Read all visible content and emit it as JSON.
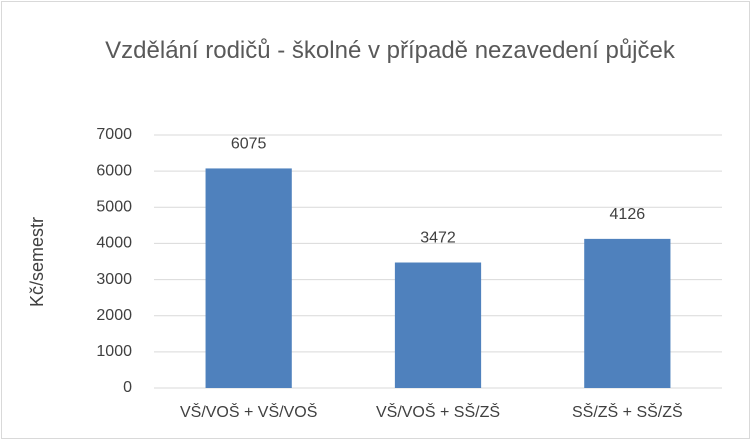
{
  "chart_data": {
    "type": "bar",
    "title": "Vzdělání rodičů - školné v případě nezavedení půjček",
    "y_label": "Kč/semestr",
    "categories": [
      "VŠ/VOŠ + VŠ/VOŠ",
      "VŠ/VOŠ + SŠ/ZŠ",
      "SŠ/ZŠ + SŠ/ZŠ"
    ],
    "values": [
      6075,
      3472,
      4126
    ],
    "color": "#4f81bd",
    "ylim": [
      0,
      7000
    ],
    "yticks": [
      0,
      1000,
      2000,
      3000,
      4000,
      5000,
      6000,
      7000
    ],
    "grid": true
  }
}
